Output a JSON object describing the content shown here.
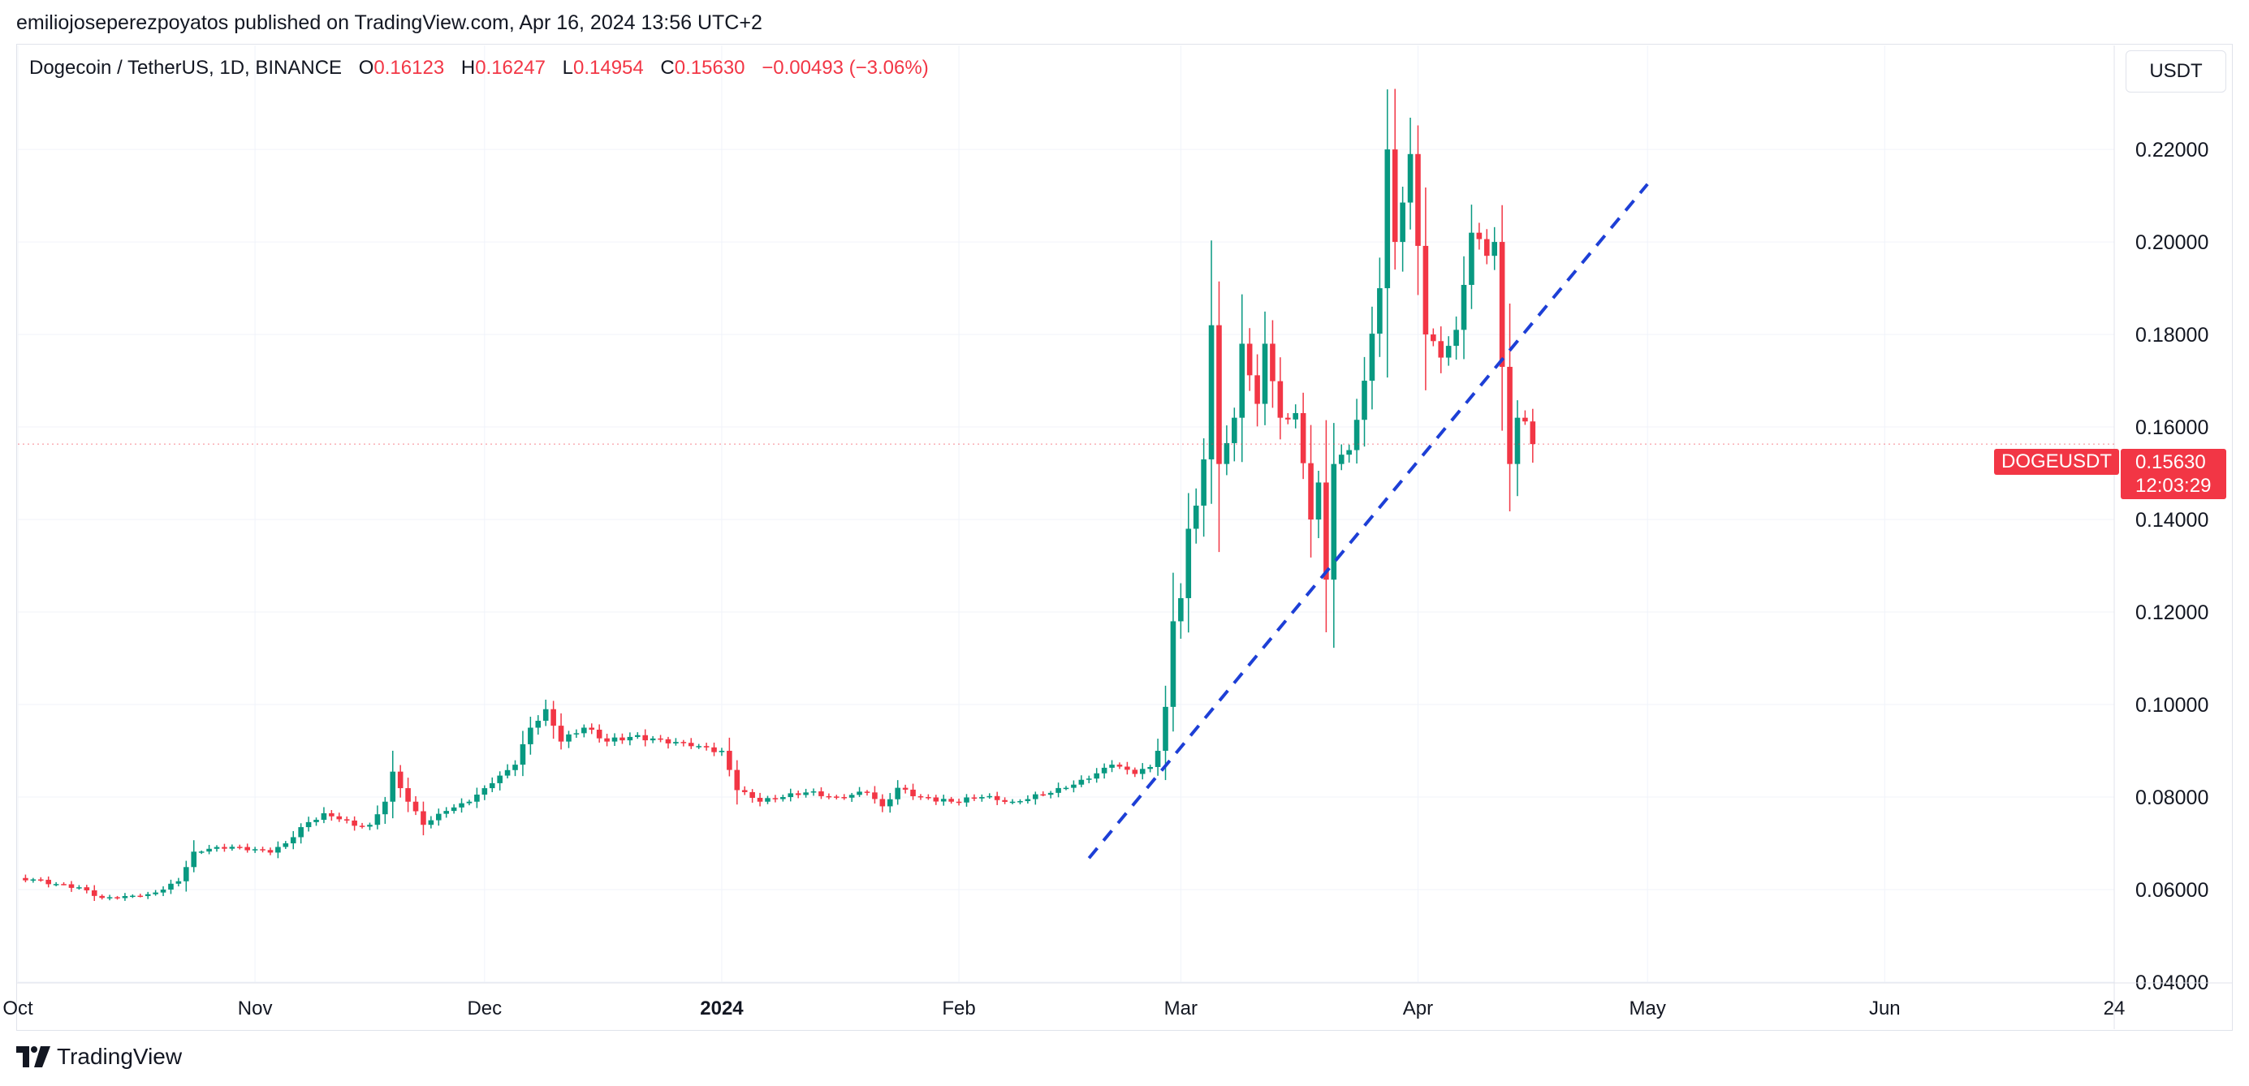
{
  "publisher_line": "emiliojoseperezpoyatos published on TradingView.com, Apr 16, 2024 13:56 UTC+2",
  "legend": {
    "symbol": "Dogecoin / TetherUS, 1D, BINANCE",
    "o_label": "O",
    "o_value": "0.16123",
    "h_label": "H",
    "h_value": "0.16247",
    "l_label": "L",
    "l_value": "0.14954",
    "c_label": "C",
    "c_value": "0.15630",
    "change": "−0.00493 (−3.06%)"
  },
  "currency_button": "USDT",
  "symbol_tag": "DOGEUSDT",
  "price_tag": {
    "price": "0.15630",
    "countdown": "12:03:29"
  },
  "footer_brand": "TradingView",
  "colors": {
    "up": "#089981",
    "down": "#f23645",
    "trendline": "#1d3fd6",
    "grid": "#f0f3fa"
  },
  "chart_data": {
    "type": "candlestick",
    "symbol": "DOGEUSDT",
    "timeframe": "1D",
    "exchange": "BINANCE",
    "x_ticks": [
      {
        "label": "Oct",
        "date": "2023-10-01"
      },
      {
        "label": "Nov",
        "date": "2023-11-01"
      },
      {
        "label": "Dec",
        "date": "2023-12-01"
      },
      {
        "label": "2024",
        "date": "2024-01-01",
        "bold": true
      },
      {
        "label": "Feb",
        "date": "2024-02-01"
      },
      {
        "label": "Mar",
        "date": "2024-03-01"
      },
      {
        "label": "Apr",
        "date": "2024-04-01"
      },
      {
        "label": "May",
        "date": "2024-05-01"
      },
      {
        "label": "Jun",
        "date": "2024-06-01"
      },
      {
        "label": "24",
        "date": "2024-07-01"
      }
    ],
    "y_ticks": [
      "0.04000",
      "0.06000",
      "0.08000",
      "0.10000",
      "0.12000",
      "0.14000",
      "0.16000",
      "0.18000",
      "0.20000",
      "0.22000"
    ],
    "ylim": [
      0.04,
      0.233
    ],
    "xlim": [
      "2023-10-01",
      "2024-07-01"
    ],
    "last_close": 0.1563,
    "anchors": [
      [
        "2023-10-01",
        0.0625
      ],
      [
        "2023-10-03",
        0.0622
      ],
      [
        "2023-10-06",
        0.0612
      ],
      [
        "2023-10-09",
        0.0605
      ],
      [
        "2023-10-12",
        0.0582
      ],
      [
        "2023-10-15",
        0.0586
      ],
      [
        "2023-10-18",
        0.059
      ],
      [
        "2023-10-20",
        0.06
      ],
      [
        "2023-10-22",
        0.0618
      ],
      [
        "2023-10-24",
        0.0682
      ],
      [
        "2023-10-27",
        0.0692
      ],
      [
        "2023-10-30",
        0.0692
      ],
      [
        "2023-11-03",
        0.068
      ],
      [
        "2023-11-05",
        0.07
      ],
      [
        "2023-11-07",
        0.0735
      ],
      [
        "2023-11-10",
        0.0765
      ],
      [
        "2023-11-12",
        0.0752
      ],
      [
        "2023-11-14",
        0.0738
      ],
      [
        "2023-11-16",
        0.074
      ],
      [
        "2023-11-18",
        0.079
      ],
      [
        "2023-11-19",
        0.0855
      ],
      [
        "2023-11-21",
        0.079
      ],
      [
        "2023-11-23",
        0.074
      ],
      [
        "2023-11-26",
        0.077
      ],
      [
        "2023-11-29",
        0.079
      ],
      [
        "2023-12-02",
        0.083
      ],
      [
        "2023-12-05",
        0.087
      ],
      [
        "2023-12-07",
        0.095
      ],
      [
        "2023-12-09",
        0.099
      ],
      [
        "2023-12-11",
        0.092
      ],
      [
        "2023-12-14",
        0.095
      ],
      [
        "2023-12-17",
        0.092
      ],
      [
        "2023-12-20",
        0.093
      ],
      [
        "2023-12-24",
        0.0925
      ],
      [
        "2023-12-28",
        0.091
      ],
      [
        "2024-01-01",
        0.09
      ],
      [
        "2024-01-03",
        0.0815
      ],
      [
        "2024-01-06",
        0.079
      ],
      [
        "2024-01-09",
        0.08
      ],
      [
        "2024-01-12",
        0.081
      ],
      [
        "2024-01-16",
        0.08
      ],
      [
        "2024-01-20",
        0.081
      ],
      [
        "2024-01-22",
        0.078
      ],
      [
        "2024-01-24",
        0.082
      ],
      [
        "2024-01-27",
        0.08
      ],
      [
        "2024-01-31",
        0.079
      ],
      [
        "2024-02-04",
        0.08
      ],
      [
        "2024-02-08",
        0.079
      ],
      [
        "2024-02-12",
        0.0805
      ],
      [
        "2024-02-15",
        0.082
      ],
      [
        "2024-02-18",
        0.084
      ],
      [
        "2024-02-21",
        0.087
      ],
      [
        "2024-02-24",
        0.085
      ],
      [
        "2024-02-26",
        0.0865
      ],
      [
        "2024-02-27",
        0.09
      ],
      [
        "2024-02-28",
        0.0995
      ],
      [
        "2024-02-29",
        0.118
      ],
      [
        "2024-03-01",
        0.123
      ],
      [
        "2024-03-02",
        0.138
      ],
      [
        "2024-03-03",
        0.143
      ],
      [
        "2024-03-04",
        0.153
      ],
      [
        "2024-03-05",
        0.182
      ],
      [
        "2024-03-06",
        0.152
      ],
      [
        "2024-03-08",
        0.162
      ],
      [
        "2024-03-09",
        0.178
      ],
      [
        "2024-03-11",
        0.165
      ],
      [
        "2024-03-12",
        0.178
      ],
      [
        "2024-03-14",
        0.162
      ],
      [
        "2024-03-16",
        0.163
      ],
      [
        "2024-03-18",
        0.14
      ],
      [
        "2024-03-19",
        0.148
      ],
      [
        "2024-03-20",
        0.127
      ],
      [
        "2024-03-21",
        0.152
      ],
      [
        "2024-03-23",
        0.155
      ],
      [
        "2024-03-25",
        0.17
      ],
      [
        "2024-03-27",
        0.19
      ],
      [
        "2024-03-28",
        0.22
      ],
      [
        "2024-03-29",
        0.2
      ],
      [
        "2024-03-31",
        0.219
      ],
      [
        "2024-04-02",
        0.18
      ],
      [
        "2024-04-04",
        0.175
      ],
      [
        "2024-04-06",
        0.181
      ],
      [
        "2024-04-08",
        0.202
      ],
      [
        "2024-04-10",
        0.197
      ],
      [
        "2024-04-11",
        0.2
      ],
      [
        "2024-04-12",
        0.173
      ],
      [
        "2024-04-13",
        0.152
      ],
      [
        "2024-04-14",
        0.162
      ],
      [
        "2024-04-15",
        0.1612
      ],
      [
        "2024-04-16",
        0.1563
      ]
    ],
    "trendline": {
      "start": [
        "2024-02-18",
        0.0668
      ],
      "end": [
        "2024-05-01",
        0.2125
      ],
      "style": "dashed"
    }
  }
}
